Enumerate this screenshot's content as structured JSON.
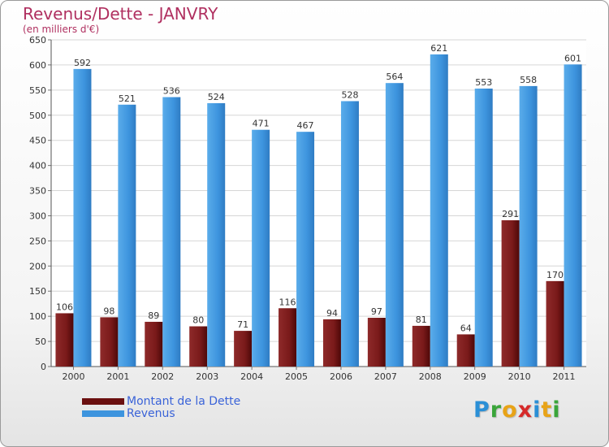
{
  "title": "Revenus/Dette - JANVRY",
  "subtitle": "(en milliers d'€)",
  "colors": {
    "dette": "#7a1a1a",
    "revenus": "#3d94de",
    "title": "#b03060",
    "legend_text": "#3a63d8"
  },
  "legend": [
    {
      "label": "Montant de la Dette",
      "color": "#6b0f0f"
    },
    {
      "label": "Revenus",
      "color": "#3d94de"
    }
  ],
  "logo": {
    "text": "Proxiti",
    "letter_colors": [
      "#2a8fd6",
      "#3aa53a",
      "#e8a317",
      "#d62a2a",
      "#2a8fd6",
      "#e8a317",
      "#3aa53a"
    ]
  },
  "chart_data": {
    "type": "bar",
    "categories": [
      "2000",
      "2001",
      "2002",
      "2003",
      "2004",
      "2005",
      "2006",
      "2007",
      "2008",
      "2009",
      "2010",
      "2011"
    ],
    "series": [
      {
        "name": "Montant de la Dette",
        "values": [
          106,
          98,
          89,
          80,
          71,
          116,
          94,
          97,
          81,
          64,
          291,
          170
        ]
      },
      {
        "name": "Revenus",
        "values": [
          592,
          521,
          536,
          524,
          471,
          467,
          528,
          564,
          621,
          553,
          558,
          601
        ]
      }
    ],
    "title": "Revenus/Dette - JANVRY",
    "ylabel": "",
    "xlabel": "",
    "ylim": [
      0,
      650
    ],
    "yticks": [
      0,
      50,
      100,
      150,
      200,
      250,
      300,
      350,
      400,
      450,
      500,
      550,
      600,
      650
    ],
    "grid": true,
    "legend_position": "bottom-left"
  }
}
